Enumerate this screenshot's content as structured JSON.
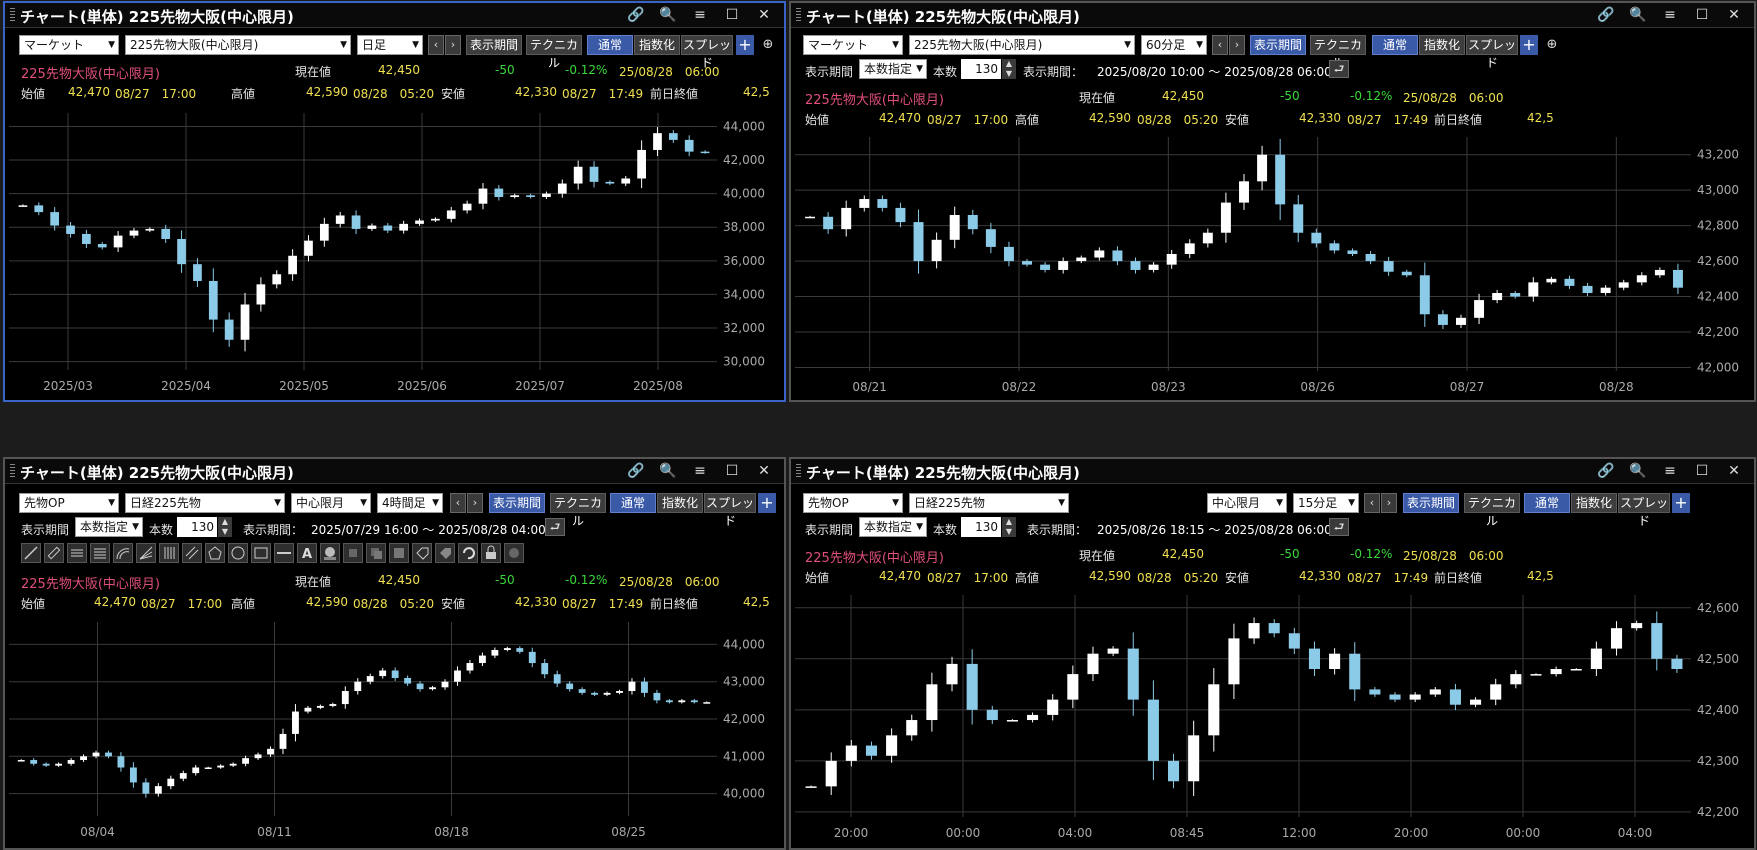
{
  "window_title": "チャート(単体) 225先物大阪(中心限月)",
  "window_icons": [
    "link-icon",
    "search-icon",
    "menu-icon",
    "maximize-icon",
    "close-icon"
  ],
  "labels": {
    "instrument": "225先物大阪(中心限月)",
    "current": "現在値",
    "open": "始値",
    "high": "高値",
    "low": "安値",
    "prev_close": "前日終値",
    "period_label": "表示期間",
    "period_mode": "本数指定",
    "bars_label": "本数",
    "period_range_label": "表示期間：",
    "display_period_btn": "表示期間",
    "technical_btn": "テクニカル",
    "normal_btn": "通常",
    "index_btn": "指数化",
    "spread_btn": "スプレッド"
  },
  "quote": {
    "current": "42,450",
    "change": "-50",
    "change_pct": "-0.12%",
    "datetime": "25/08/28　06:00",
    "open": "42,470",
    "open_time": "08/27　17:00",
    "high": "42,590",
    "high_time": "08/28　05:20",
    "low": "42,330",
    "low_time": "08/27　17:49",
    "prev_close": "42,5"
  },
  "panels": [
    {
      "market": "マーケット",
      "symbol": "225先物大阪(中心限月)",
      "timeframe": "日足",
      "chart_data": {
        "type": "candlestick",
        "x_ticks": [
          "2025/03",
          "2025/04",
          "2025/05",
          "2025/06",
          "2025/07",
          "2025/08"
        ],
        "y_ticks": [
          "44,000",
          "42,000",
          "40,000",
          "38,000",
          "36,000",
          "34,000",
          "32,000",
          "30,000"
        ],
        "ylim": [
          29500,
          44800
        ],
        "series": [
          39300,
          38900,
          38100,
          37600,
          37000,
          36800,
          37500,
          37800,
          37900,
          37300,
          35800,
          34800,
          32500,
          31300,
          33400,
          34600,
          35200,
          36300,
          37200,
          38200,
          38700,
          37900,
          38100,
          37800,
          38200,
          38400,
          38500,
          39000,
          39400,
          40300,
          39800,
          39900,
          39800,
          40000,
          40600,
          41600,
          40700,
          40600,
          40900,
          42600,
          43600,
          43200,
          42500,
          42450
        ]
      }
    },
    {
      "market": "マーケット",
      "symbol": "225先物大阪(中心限月)",
      "timeframe": "60分足",
      "bars": "130",
      "period_range": "2025/08/20 10:00 〜 2025/08/28 06:00",
      "chart_data": {
        "type": "candlestick",
        "x_ticks": [
          "08/21",
          "08/22",
          "08/23",
          "08/26",
          "08/27",
          "08/28"
        ],
        "y_ticks": [
          "43,200",
          "43,000",
          "42,800",
          "42,600",
          "42,400",
          "42,200",
          "42,000"
        ],
        "ylim": [
          41980,
          43300
        ],
        "series": [
          42850,
          42780,
          42900,
          42950,
          42900,
          42820,
          42600,
          42720,
          42860,
          42780,
          42680,
          42600,
          42580,
          42550,
          42600,
          42620,
          42660,
          42600,
          42550,
          42580,
          42640,
          42700,
          42760,
          42930,
          43050,
          43200,
          42920,
          42760,
          42700,
          42660,
          42640,
          42600,
          42540,
          42520,
          42300,
          42240,
          42280,
          42380,
          42420,
          42400,
          42480,
          42500,
          42460,
          42420,
          42450,
          42480,
          42520,
          42550,
          42450
        ]
      }
    },
    {
      "market": "先物OP",
      "symbol": "日経225先物",
      "contract": "中心限月",
      "timeframe": "4時間足",
      "bars": "130",
      "period_range": "2025/07/29 16:00 〜 2025/08/28 04:00",
      "tools": [
        "line-tool-icon",
        "ruler-tool-icon",
        "hline-tool-icon",
        "channel-tool-icon",
        "arc-tool-icon",
        "fan-tool-icon",
        "vlines-tool-icon",
        "parallel-tool-icon",
        "pentagon-tool-icon",
        "circle-tool-icon",
        "rect-tool-icon",
        "dash-tool-icon",
        "text-tool-icon",
        "icon-tool-icon",
        "brush-tool-icon",
        "copy-tool-icon",
        "erase-tool-icon",
        "tag-tool-icon",
        "price-tool-icon",
        "undo-tool-icon",
        "lock-tool-icon",
        "settings-tool-icon"
      ],
      "chart_data": {
        "type": "candlestick",
        "x_ticks": [
          "08/04",
          "08/11",
          "08/18",
          "08/25"
        ],
        "y_ticks": [
          "44,000",
          "43,000",
          "42,000",
          "41,000",
          "40,000"
        ],
        "ylim": [
          39400,
          44600
        ],
        "series": [
          40900,
          40800,
          40750,
          40800,
          40900,
          41000,
          41100,
          41000,
          40700,
          40300,
          40000,
          40200,
          40400,
          40550,
          40700,
          40700,
          40750,
          40800,
          40950,
          41050,
          41200,
          41600,
          42200,
          42300,
          42350,
          42400,
          42750,
          43000,
          43150,
          43300,
          43100,
          42950,
          42800,
          42850,
          43000,
          43300,
          43500,
          43700,
          43850,
          43900,
          43800,
          43500,
          43200,
          42950,
          42800,
          42700,
          42650,
          42700,
          42750,
          43000,
          42700,
          42500,
          42450,
          42500,
          42450,
          42450
        ]
      }
    },
    {
      "market": "先物OP",
      "symbol": "日経225先物",
      "contract": "中心限月",
      "timeframe": "15分足",
      "bars": "130",
      "period_range": "2025/08/26 18:15 〜 2025/08/28 06:00",
      "chart_data": {
        "type": "candlestick",
        "x_ticks": [
          "20:00",
          "00:00",
          "04:00",
          "08:45",
          "12:00",
          "20:00",
          "00:00",
          "04:00"
        ],
        "y_ticks": [
          "42,600",
          "42,500",
          "42,400",
          "42,300",
          "42,200"
        ],
        "ylim": [
          42190,
          42625
        ],
        "series": [
          42250,
          42300,
          42330,
          42310,
          42350,
          42380,
          42450,
          42490,
          42400,
          42380,
          42380,
          42390,
          42420,
          42470,
          42510,
          42520,
          42420,
          42300,
          42260,
          42350,
          42450,
          42540,
          42570,
          42550,
          42520,
          42480,
          42510,
          42440,
          42430,
          42420,
          42430,
          42440,
          42410,
          42420,
          42450,
          42470,
          42470,
          42480,
          42480,
          42520,
          42560,
          42570,
          42500,
          42480
        ]
      }
    }
  ]
}
